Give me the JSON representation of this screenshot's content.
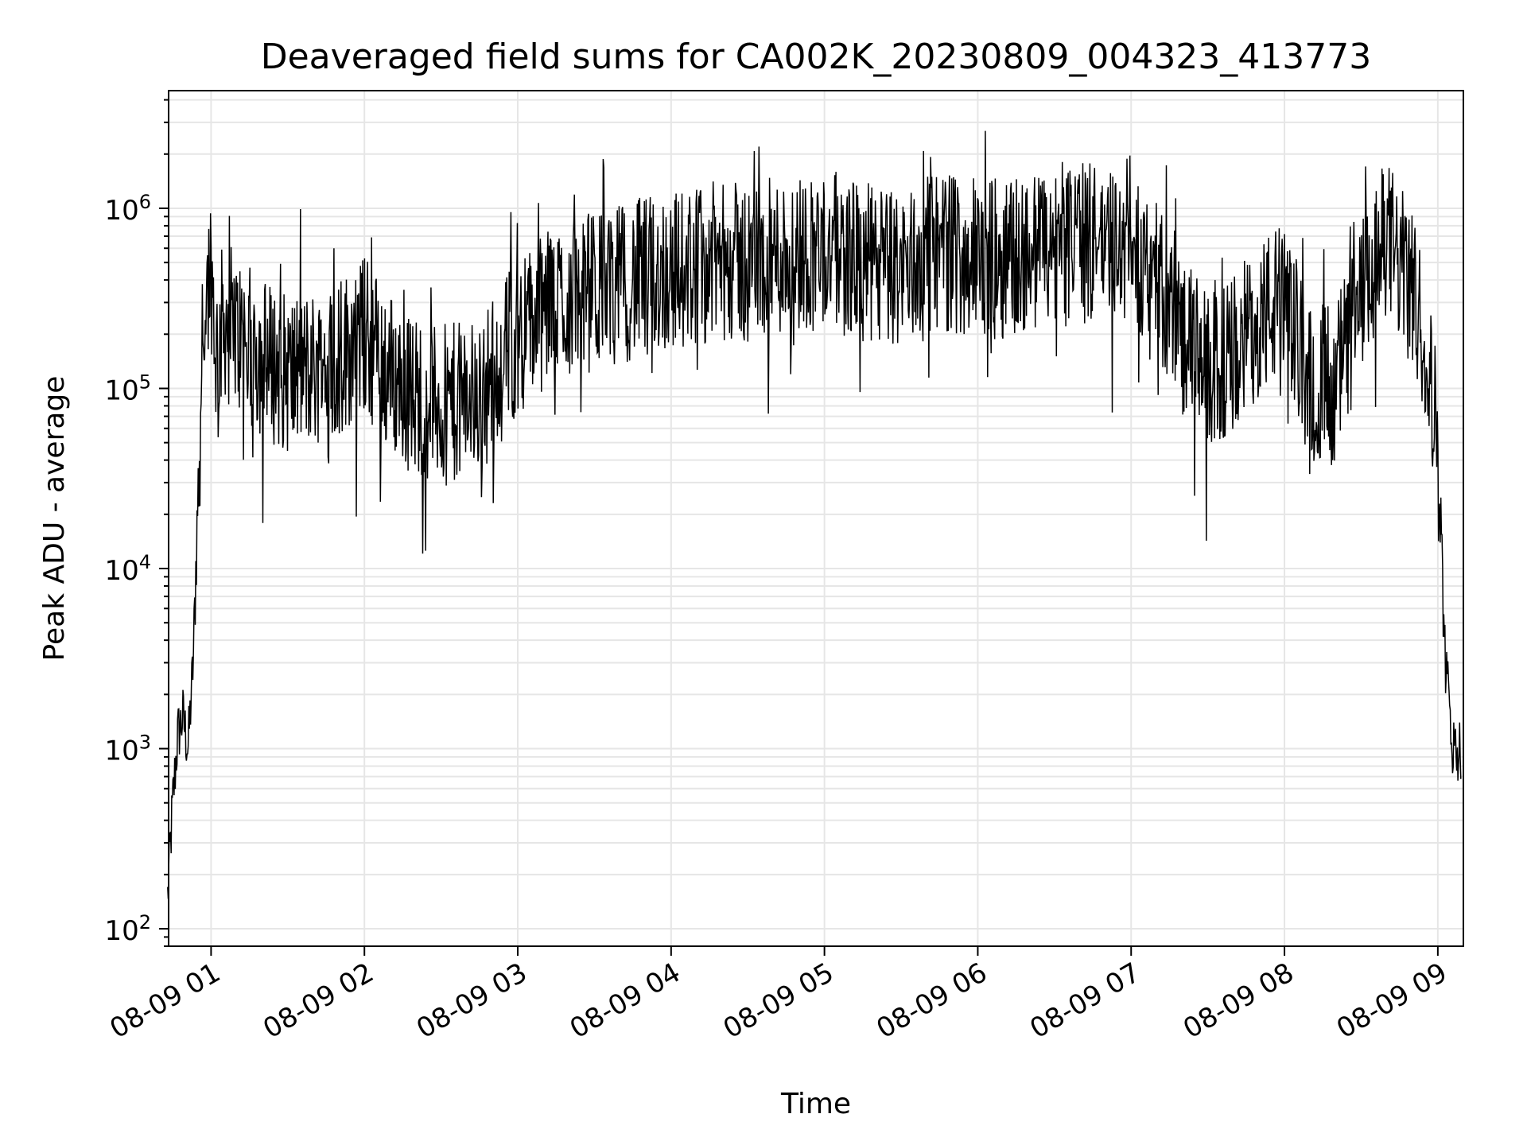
{
  "chart_data": {
    "type": "line",
    "title": "Deaveraged field sums for CA002K_20230809_004323_413773",
    "xlabel": "Time",
    "ylabel": "Peak ADU - average",
    "y_scale": "log",
    "xlim": [
      "08-09 00:43:23",
      "08-09 09:10:00"
    ],
    "ylim": [
      80,
      4500000
    ],
    "grid": true,
    "x_ticks": [
      "08-09 01",
      "08-09 02",
      "08-09 03",
      "08-09 04",
      "08-09 05",
      "08-09 06",
      "08-09 07",
      "08-09 08",
      "08-09 09"
    ],
    "y_ticks": [
      {
        "base": "10",
        "exp": "2",
        "value": 100
      },
      {
        "base": "10",
        "exp": "3",
        "value": 1000
      },
      {
        "base": "10",
        "exp": "4",
        "value": 10000
      },
      {
        "base": "10",
        "exp": "5",
        "value": 100000
      },
      {
        "base": "10",
        "exp": "6",
        "value": 1000000
      }
    ],
    "series": [
      {
        "color": "#000000",
        "x": [
          "08-09 00:43",
          "08-09 00:45",
          "08-09 00:47",
          "08-09 00:49",
          "08-09 00:51",
          "08-09 00:53",
          "08-09 00:55",
          "08-09 00:57",
          "08-09 00:59",
          "08-09 01:00",
          "08-09 01:02",
          "08-09 01:05",
          "08-09 01:10",
          "08-09 01:20",
          "08-09 01:30",
          "08-09 01:40",
          "08-09 01:50",
          "08-09 02:00",
          "08-09 02:15",
          "08-09 02:30",
          "08-09 02:45",
          "08-09 03:00",
          "08-09 03:15",
          "08-09 03:30",
          "08-09 03:45",
          "08-09 04:00",
          "08-09 04:15",
          "08-09 04:30",
          "08-09 04:45",
          "08-09 05:00",
          "08-09 05:15",
          "08-09 05:30",
          "08-09 05:45",
          "08-09 06:00",
          "08-09 06:15",
          "08-09 06:30",
          "08-09 06:45",
          "08-09 07:00",
          "08-09 07:10",
          "08-09 07:20",
          "08-09 07:30",
          "08-09 07:40",
          "08-09 07:50",
          "08-09 08:00",
          "08-09 08:10",
          "08-09 08:20",
          "08-09 08:30",
          "08-09 08:40",
          "08-09 08:48",
          "08-09 08:55",
          "08-09 09:00",
          "08-09 09:03",
          "08-09 09:06",
          "08-09 09:09"
        ],
        "y": [
          150,
          500,
          1200,
          1500,
          1000,
          3000,
          30000,
          250000,
          400000,
          500000,
          150000,
          250000,
          200000,
          150000,
          120000,
          130000,
          150000,
          200000,
          100000,
          80000,
          90000,
          200000,
          300000,
          350000,
          400000,
          450000,
          500000,
          500000,
          550000,
          600000,
          500000,
          450000,
          600000,
          500000,
          550000,
          600000,
          650000,
          700000,
          400000,
          200000,
          120000,
          150000,
          250000,
          300000,
          110000,
          110000,
          300000,
          700000,
          400000,
          200000,
          50000,
          3000,
          1000,
          1000
        ]
      }
    ]
  }
}
